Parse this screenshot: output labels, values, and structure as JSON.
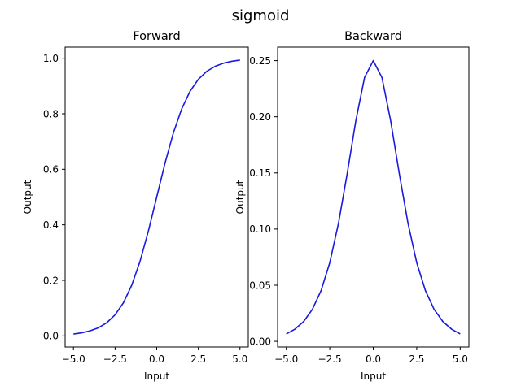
{
  "figure": {
    "suptitle": "sigmoid"
  },
  "chart_data": [
    {
      "type": "line",
      "title": "Forward",
      "xlabel": "Input",
      "ylabel": "Output",
      "xlim": [
        -5.5,
        5.5
      ],
      "ylim": [
        -0.04,
        1.04
      ],
      "xticks": [
        -5.0,
        -2.5,
        0.0,
        2.5,
        5.0
      ],
      "xtick_labels": [
        "−5.0",
        "−2.5",
        "0.0",
        "2.5",
        "5.0"
      ],
      "yticks": [
        0.0,
        0.2,
        0.4,
        0.6,
        0.8,
        1.0
      ],
      "ytick_labels": [
        "0.0",
        "0.2",
        "0.4",
        "0.6",
        "0.8",
        "1.0"
      ],
      "grid": false,
      "color": "#1a1adc",
      "x": [
        -5.0,
        -4.5,
        -4.0,
        -3.5,
        -3.0,
        -2.5,
        -2.0,
        -1.5,
        -1.0,
        -0.5,
        0.0,
        0.5,
        1.0,
        1.5,
        2.0,
        2.5,
        3.0,
        3.5,
        4.0,
        4.5,
        5.0
      ],
      "y": [
        0.0067,
        0.011,
        0.018,
        0.0293,
        0.0474,
        0.0759,
        0.1192,
        0.1824,
        0.2689,
        0.3775,
        0.5,
        0.6225,
        0.7311,
        0.8176,
        0.8808,
        0.9241,
        0.9526,
        0.9707,
        0.982,
        0.989,
        0.9933
      ]
    },
    {
      "type": "line",
      "title": "Backward",
      "xlabel": "Input",
      "ylabel": "Output",
      "xlim": [
        -5.5,
        5.5
      ],
      "ylim": [
        -0.005,
        0.262
      ],
      "xticks": [
        -5.0,
        -2.5,
        0.0,
        2.5,
        5.0
      ],
      "xtick_labels": [
        "−5.0",
        "−2.5",
        "0.0",
        "2.5",
        "5.0"
      ],
      "yticks": [
        0.0,
        0.05,
        0.1,
        0.15,
        0.2,
        0.25
      ],
      "ytick_labels": [
        "0.00",
        "0.05",
        "0.10",
        "0.15",
        "0.20",
        "0.25"
      ],
      "grid": false,
      "color": "#1a1adc",
      "x": [
        -5.0,
        -4.5,
        -4.0,
        -3.5,
        -3.0,
        -2.5,
        -2.0,
        -1.5,
        -1.0,
        -0.5,
        0.0,
        0.5,
        1.0,
        1.5,
        2.0,
        2.5,
        3.0,
        3.5,
        4.0,
        4.5,
        5.0
      ],
      "y": [
        0.0066,
        0.0109,
        0.0177,
        0.0285,
        0.0452,
        0.0701,
        0.105,
        0.1491,
        0.1966,
        0.235,
        0.25,
        0.235,
        0.1966,
        0.1491,
        0.105,
        0.0701,
        0.0452,
        0.0285,
        0.0177,
        0.0109,
        0.0066
      ]
    }
  ]
}
